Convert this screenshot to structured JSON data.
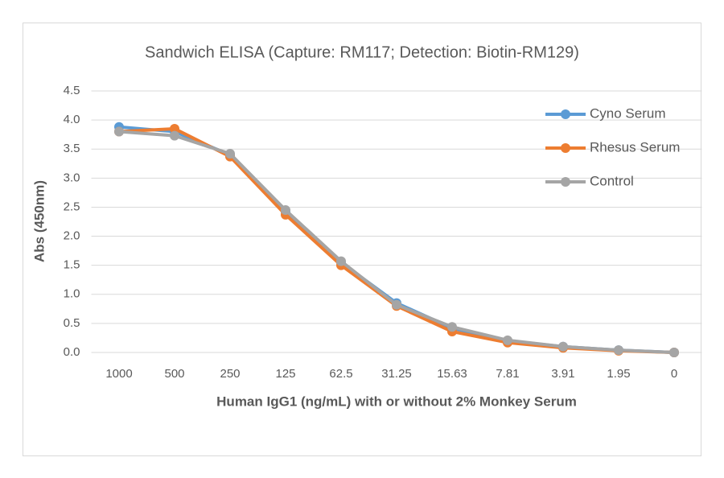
{
  "chart_data": {
    "type": "line",
    "title": "Sandwich ELISA (Capture:  RM117; Detection: Biotin-RM129)",
    "x_label": "Human IgG1 (ng/mL) with or without 2% Monkey Serum",
    "y_label": "Abs (450nm)",
    "categories": [
      "1000",
      "500",
      "250",
      "125",
      "62.5",
      "31.25",
      "15.63",
      "7.81",
      "3.91",
      "1.95",
      "0"
    ],
    "series": [
      {
        "name": "Cyno Serum",
        "color": "#5b9bd5",
        "values": [
          3.88,
          3.8,
          3.4,
          2.42,
          1.55,
          0.85,
          0.42,
          0.2,
          0.1,
          0.04,
          0.0
        ]
      },
      {
        "name": "Rhesus Serum",
        "color": "#ed7d31",
        "values": [
          3.8,
          3.85,
          3.37,
          2.37,
          1.5,
          0.8,
          0.36,
          0.17,
          0.08,
          0.03,
          0.0
        ]
      },
      {
        "name": "Control",
        "color": "#a5a5a5",
        "values": [
          3.8,
          3.73,
          3.42,
          2.45,
          1.57,
          0.82,
          0.44,
          0.21,
          0.1,
          0.04,
          0.0
        ]
      }
    ],
    "ylim": [
      0,
      4.5
    ],
    "yticks": [
      {
        "value": 0,
        "label": "0.0"
      },
      {
        "value": 0.5,
        "label": "0.5"
      },
      {
        "value": 1,
        "label": "1.0"
      },
      {
        "value": 1.5,
        "label": "1.5"
      },
      {
        "value": 2,
        "label": "2.0"
      },
      {
        "value": 2.5,
        "label": "2.5"
      },
      {
        "value": 3,
        "label": "3.0"
      },
      {
        "value": 3.5,
        "label": "3.5"
      },
      {
        "value": 4,
        "label": "4.0"
      },
      {
        "value": 4.5,
        "label": "4.5"
      }
    ],
    "grid": true,
    "legend": "top-right"
  }
}
